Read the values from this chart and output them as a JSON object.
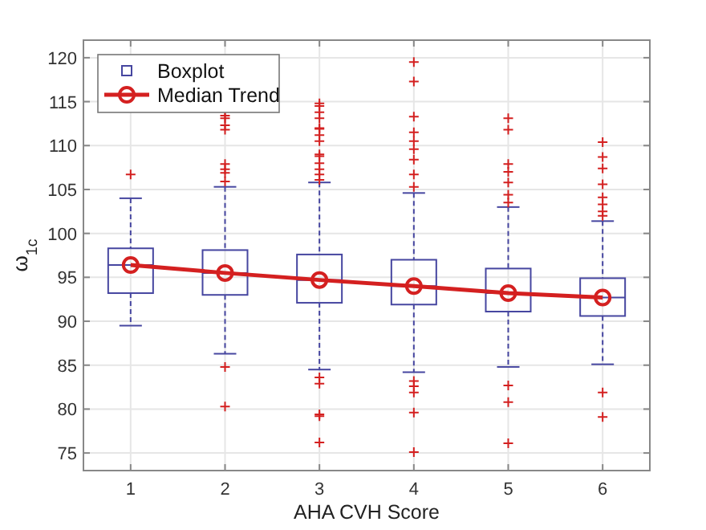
{
  "chart_data": {
    "type": "box",
    "xlabel": "AHA CVH Score",
    "ylabel": "ω$_{1c}$",
    "categories": [
      "1",
      "2",
      "3",
      "4",
      "5",
      "6"
    ],
    "ylim": [
      73,
      122
    ],
    "yticks": [
      75,
      80,
      85,
      90,
      95,
      100,
      105,
      110,
      115,
      120
    ],
    "grid": true,
    "legend": "top left",
    "series": [
      {
        "name": "Boxplot",
        "color": "#4646a0",
        "boxes": [
          {
            "low": 89.5,
            "q1": 93.2,
            "median": 96.4,
            "q3": 98.3,
            "high": 104,
            "outliers": [
              106.7
            ]
          },
          {
            "low": 86.3,
            "q1": 93,
            "median": 95.5,
            "q3": 98.1,
            "high": 105.3,
            "outliers": [
              84.8,
              80.3,
              105.9,
              106.9,
              107.3,
              107.9,
              111.8,
              112.3,
              113.1,
              113.4
            ]
          },
          {
            "low": 84.5,
            "q1": 92.1,
            "median": 94.7,
            "q3": 97.6,
            "high": 105.8,
            "outliers": [
              83.6,
              82.9,
              79.4,
              79.2,
              76.2,
              106.1,
              106.7,
              107.3,
              108,
              108.8,
              109,
              110.5,
              111.2,
              111.9,
              112,
              113.1,
              113.8,
              114.5,
              114.8
            ]
          },
          {
            "low": 84.2,
            "q1": 91.9,
            "median": 94,
            "q3": 97,
            "high": 104.6,
            "outliers": [
              83.2,
              82.6,
              81.9,
              79.6,
              75.1,
              105.3,
              106.7,
              108.4,
              109.6,
              110.5,
              111.5,
              113.3,
              117.3,
              119.5
            ]
          },
          {
            "low": 84.8,
            "q1": 91.1,
            "median": 93.2,
            "q3": 96,
            "high": 103,
            "outliers": [
              82.7,
              80.8,
              76.1,
              103.5,
              104.4,
              105.8,
              107,
              107.9,
              111.8,
              113.1
            ]
          },
          {
            "low": 85.1,
            "q1": 90.6,
            "median": 92.7,
            "q3": 94.9,
            "high": 101.4,
            "outliers": [
              81.9,
              79.1,
              102,
              102.5,
              103.3,
              104.1,
              105.6,
              107.4,
              108.7,
              110.4
            ]
          }
        ]
      },
      {
        "name": "Median Trend",
        "type": "line",
        "color": "#d42020",
        "marker": "circle",
        "x": [
          "1",
          "2",
          "3",
          "4",
          "5",
          "6"
        ],
        "values": [
          96.4,
          95.5,
          94.7,
          94,
          93.2,
          92.7
        ]
      }
    ]
  }
}
